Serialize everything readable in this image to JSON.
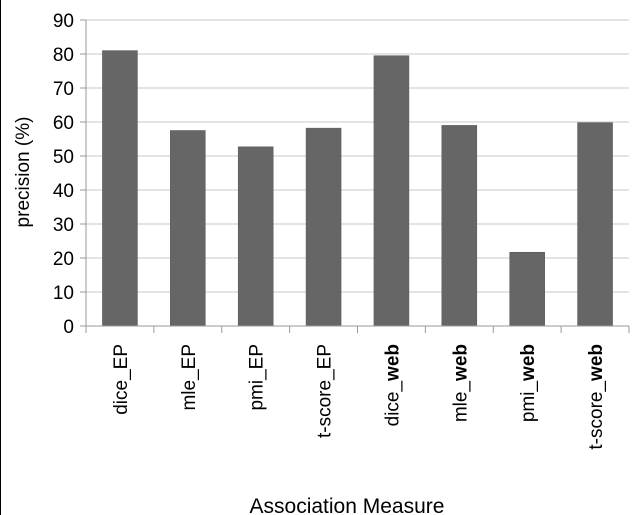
{
  "chart_data": {
    "type": "bar",
    "categories": [
      {
        "prefix": "dice_",
        "suffix": "EP",
        "suffix_bold": false
      },
      {
        "prefix": "mle_",
        "suffix": "EP",
        "suffix_bold": false
      },
      {
        "prefix": "pmi_",
        "suffix": "EP",
        "suffix_bold": false
      },
      {
        "prefix": "t-score_",
        "suffix": "EP",
        "suffix_bold": false
      },
      {
        "prefix": "dice_",
        "suffix": "web",
        "suffix_bold": true
      },
      {
        "prefix": "mle_",
        "suffix": "web",
        "suffix_bold": true
      },
      {
        "prefix": "pmi_",
        "suffix": "web",
        "suffix_bold": true
      },
      {
        "prefix": "t-score_",
        "suffix": "web",
        "suffix_bold": true
      }
    ],
    "values": [
      81,
      57.5,
      52.7,
      58.2,
      79.5,
      59,
      21.7,
      59.8
    ],
    "xlabel": "Association Measure",
    "ylabel": "precision (%)",
    "ylim": [
      0,
      90
    ],
    "yticks": [
      0,
      10,
      20,
      30,
      40,
      50,
      60,
      70,
      80,
      90
    ],
    "grid": true,
    "bar_color": "#666666",
    "grid_color": "#c8c8c8"
  }
}
